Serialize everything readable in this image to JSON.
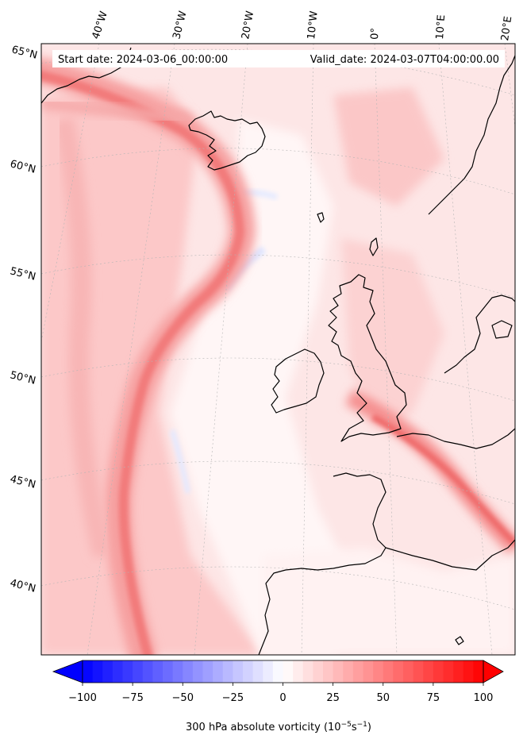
{
  "header": {
    "start_date": "Start date: 2024-03-06_00:00:00",
    "valid_date": "Valid_date: 2024-03-07T04:00:00.00"
  },
  "map": {
    "lon_labels": [
      "40°W",
      "30°W",
      "20°W",
      "10°W",
      "0°",
      "10°E",
      "20°E"
    ],
    "lat_labels": [
      "65°N",
      "60°N",
      "55°N",
      "50°N",
      "45°N",
      "40°N"
    ]
  },
  "colorbar": {
    "ticks": [
      "−100",
      "−75",
      "−50",
      "−25",
      "0",
      "25",
      "50",
      "75",
      "100"
    ],
    "label": "300 hPa absolute vorticity (10",
    "label_exp1": "−5",
    "label_mid": "s",
    "label_exp2": "−1",
    "label_end": ")",
    "min": -100,
    "max": 100,
    "colormap": "bwr",
    "colors": {
      "negative": "#0000ff",
      "zero": "#ffffff",
      "positive": "#ff0000"
    }
  }
}
